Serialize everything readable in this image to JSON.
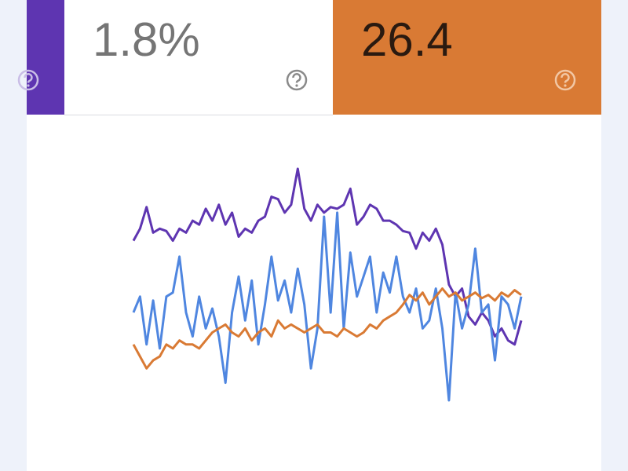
{
  "cards": [
    {
      "value": "1.8%"
    },
    {
      "value": "26.4"
    }
  ],
  "chart_data": {
    "type": "line",
    "series": [
      {
        "color": "#5e35b1",
        "values": [
          290,
          305,
          332,
          300,
          305,
          302,
          290,
          305,
          300,
          315,
          310,
          330,
          315,
          335,
          310,
          325,
          295,
          305,
          300,
          315,
          320,
          345,
          342,
          325,
          335,
          380,
          330,
          315,
          335,
          325,
          332,
          330,
          335,
          355,
          310,
          320,
          335,
          330,
          315,
          315,
          310,
          302,
          300,
          280,
          300,
          290,
          305,
          285,
          235,
          220,
          230,
          195,
          185,
          200,
          190,
          170,
          180,
          165,
          160,
          190
        ]
      },
      {
        "color": "#4f86e0",
        "values": [
          200,
          220,
          160,
          215,
          155,
          220,
          225,
          270,
          200,
          170,
          220,
          180,
          205,
          170,
          112,
          200,
          245,
          190,
          240,
          160,
          210,
          270,
          215,
          240,
          200,
          255,
          210,
          130,
          180,
          320,
          200,
          325,
          180,
          275,
          220,
          245,
          270,
          200,
          250,
          225,
          270,
          220,
          200,
          230,
          180,
          190,
          230,
          180,
          90,
          225,
          180,
          210,
          280,
          200,
          210,
          140,
          220,
          210,
          180,
          220
        ]
      },
      {
        "color": "#d97a34",
        "values": [
          160,
          145,
          130,
          140,
          145,
          160,
          155,
          165,
          160,
          160,
          155,
          165,
          175,
          180,
          185,
          175,
          170,
          180,
          165,
          175,
          180,
          170,
          190,
          180,
          185,
          180,
          175,
          180,
          185,
          175,
          175,
          170,
          180,
          175,
          170,
          175,
          185,
          180,
          190,
          195,
          200,
          210,
          222,
          215,
          225,
          210,
          220,
          230,
          220,
          225,
          215,
          220,
          225,
          218,
          222,
          215,
          225,
          220,
          228,
          222
        ]
      }
    ]
  }
}
